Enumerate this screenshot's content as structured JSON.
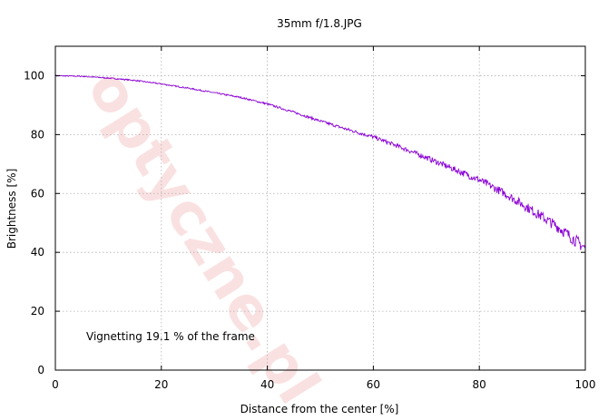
{
  "chart_data": {
    "type": "line",
    "title": "35mm f/1.8.JPG",
    "xlabel": "Distance from the center [%]",
    "ylabel": "Brightness [%]",
    "xlim": [
      0,
      100
    ],
    "ylim": [
      0,
      110
    ],
    "xticks": [
      0,
      20,
      40,
      60,
      80,
      100
    ],
    "yticks": [
      0,
      20,
      40,
      60,
      80,
      100
    ],
    "grid": true,
    "annotation": "Vignetting 19.1 % of the frame",
    "watermark": "optyczne.pl",
    "series": [
      {
        "color": "#8a00d4",
        "x": [
          0,
          5,
          10,
          15,
          20,
          25,
          30,
          35,
          40,
          45,
          50,
          55,
          60,
          65,
          70,
          75,
          80,
          85,
          90,
          95,
          100
        ],
        "y": [
          100,
          99.8,
          99.2,
          98.4,
          97.2,
          95.8,
          94.2,
          92.6,
          90.4,
          87.6,
          84.6,
          81.8,
          79.2,
          75.8,
          72.2,
          68.4,
          64.6,
          59.8,
          54.2,
          48.4,
          41.4
        ]
      }
    ]
  }
}
